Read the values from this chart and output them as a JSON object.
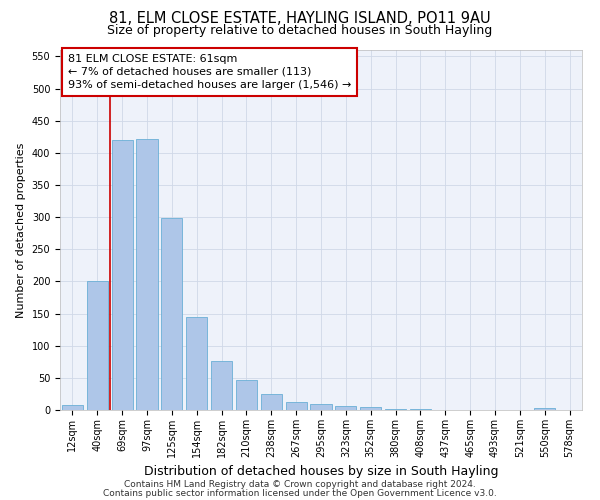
{
  "title": "81, ELM CLOSE ESTATE, HAYLING ISLAND, PO11 9AU",
  "subtitle": "Size of property relative to detached houses in South Hayling",
  "xlabel": "Distribution of detached houses by size in South Hayling",
  "ylabel": "Number of detached properties",
  "footnote1": "Contains HM Land Registry data © Crown copyright and database right 2024.",
  "footnote2": "Contains public sector information licensed under the Open Government Licence v3.0.",
  "annotation_line1": "81 ELM CLOSE ESTATE: 61sqm",
  "annotation_line2": "← 7% of detached houses are smaller (113)",
  "annotation_line3": "93% of semi-detached houses are larger (1,546) →",
  "bar_labels": [
    "12sqm",
    "40sqm",
    "69sqm",
    "97sqm",
    "125sqm",
    "154sqm",
    "182sqm",
    "210sqm",
    "238sqm",
    "267sqm",
    "295sqm",
    "323sqm",
    "352sqm",
    "380sqm",
    "408sqm",
    "437sqm",
    "465sqm",
    "493sqm",
    "521sqm",
    "550sqm",
    "578sqm"
  ],
  "bar_values": [
    8,
    200,
    420,
    422,
    299,
    144,
    76,
    47,
    25,
    13,
    9,
    7,
    5,
    2,
    1,
    0,
    0,
    0,
    0,
    3,
    0
  ],
  "bar_color": "#aec6e8",
  "bar_edge_color": "#6aafd6",
  "grid_color": "#d0d8e8",
  "background_color": "#eef2fa",
  "marker_color": "#cc0000",
  "ylim": [
    0,
    560
  ],
  "yticks": [
    0,
    50,
    100,
    150,
    200,
    250,
    300,
    350,
    400,
    450,
    500,
    550
  ],
  "title_fontsize": 10.5,
  "subtitle_fontsize": 9,
  "xlabel_fontsize": 9,
  "ylabel_fontsize": 8,
  "tick_fontsize": 7,
  "annotation_fontsize": 8,
  "footnote_fontsize": 6.5
}
